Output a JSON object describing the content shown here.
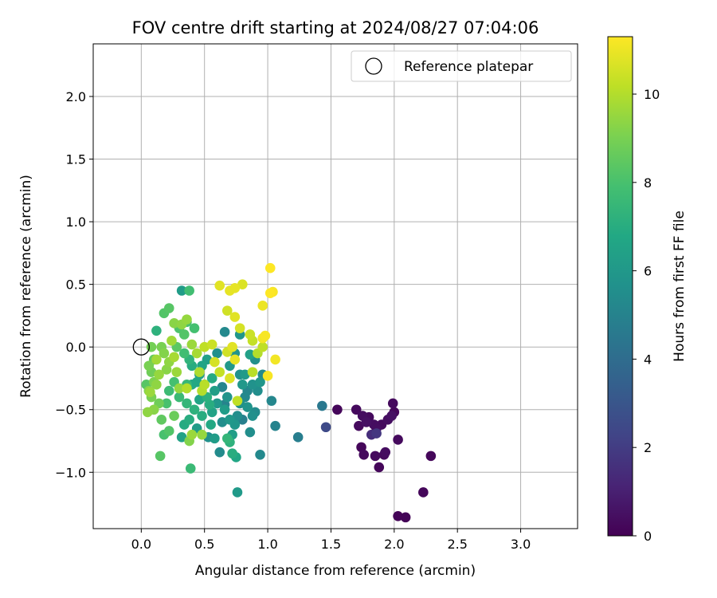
{
  "chart_data": {
    "type": "scatter",
    "title": "FOV centre drift starting at 2024/08/27 07:04:06",
    "xlabel": "Angular distance from reference (arcmin)",
    "ylabel": "Rotation from reference (arcmin)",
    "xlim": [
      -0.38,
      3.45
    ],
    "ylim": [
      -1.45,
      2.42
    ],
    "xticks": [
      "0.0",
      "0.5",
      "1.0",
      "1.5",
      "2.0",
      "2.5",
      "3.0"
    ],
    "xtick_values": [
      0,
      0.5,
      1.0,
      1.5,
      2.0,
      2.5,
      3.0
    ],
    "yticks": [
      "−1.0",
      "−0.5",
      "0.0",
      "0.5",
      "1.0",
      "1.5",
      "2.0"
    ],
    "ytick_values": [
      -1.0,
      -0.5,
      0.0,
      0.5,
      1.0,
      1.5,
      2.0
    ],
    "grid": true,
    "legend": {
      "placement": "top-right",
      "entries": [
        "Reference platepar"
      ]
    },
    "reference_point": {
      "x": 0.0,
      "y": 0.0
    },
    "colorbar": {
      "label": "Hours from first FF file",
      "min": 0,
      "max": 11.3,
      "ticks": [
        "0",
        "2",
        "4",
        "6",
        "8",
        "10"
      ],
      "tick_values": [
        0,
        2,
        4,
        6,
        8,
        10
      ],
      "colormap": "viridis"
    },
    "series": [
      {
        "points": [
          [
            1.55,
            -0.5,
            0.2
          ],
          [
            1.7,
            -0.5,
            0.3
          ],
          [
            1.72,
            -0.63,
            0.3
          ],
          [
            1.75,
            -0.55,
            0.4
          ],
          [
            1.8,
            -0.56,
            0.3
          ],
          [
            1.78,
            -0.6,
            0.5
          ],
          [
            1.84,
            -0.62,
            0.4
          ],
          [
            1.86,
            -0.65,
            0.4
          ],
          [
            1.9,
            -0.62,
            0.3
          ],
          [
            1.95,
            -0.58,
            0.4
          ],
          [
            1.99,
            -0.45,
            0.3
          ],
          [
            2.0,
            -0.52,
            0.2
          ],
          [
            1.98,
            -0.55,
            0.5
          ],
          [
            1.74,
            -0.8,
            0.2
          ],
          [
            1.76,
            -0.86,
            0.3
          ],
          [
            1.85,
            -0.87,
            0.3
          ],
          [
            1.88,
            -0.96,
            0.2
          ],
          [
            1.92,
            -0.86,
            0.3
          ],
          [
            1.93,
            -0.84,
            0.4
          ],
          [
            2.03,
            -0.74,
            0.3
          ],
          [
            2.03,
            -1.35,
            0.1
          ],
          [
            2.09,
            -1.36,
            0.1
          ],
          [
            2.23,
            -1.16,
            0.2
          ],
          [
            2.29,
            -0.87,
            0.2
          ],
          [
            1.82,
            -0.7,
            1.5
          ],
          [
            1.86,
            -0.69,
            1.8
          ],
          [
            1.46,
            -0.64,
            2.5
          ],
          [
            1.43,
            -0.47,
            4.5
          ],
          [
            1.24,
            -0.72,
            4.8
          ],
          [
            1.06,
            -0.63,
            5.0
          ],
          [
            1.03,
            -0.43,
            5.2
          ],
          [
            0.94,
            -0.86,
            5.3
          ],
          [
            0.9,
            -0.52,
            5.4
          ],
          [
            0.88,
            -0.55,
            5.6
          ],
          [
            0.86,
            -0.68,
            5.5
          ],
          [
            0.84,
            -0.48,
            5.8
          ],
          [
            0.8,
            -0.3,
            6.0
          ],
          [
            0.78,
            -0.45,
            5.6
          ],
          [
            0.76,
            -0.55,
            5.5
          ],
          [
            0.74,
            -0.62,
            5.9
          ],
          [
            0.72,
            -0.7,
            6.3
          ],
          [
            0.7,
            -0.58,
            6.0
          ],
          [
            0.68,
            -0.4,
            5.8
          ],
          [
            0.66,
            -0.5,
            6.2
          ],
          [
            0.64,
            -0.6,
            5.5
          ],
          [
            0.62,
            -0.84,
            5.4
          ],
          [
            0.6,
            -0.45,
            6.0
          ],
          [
            0.58,
            -0.35,
            6.3
          ],
          [
            0.56,
            -0.52,
            6.5
          ],
          [
            0.55,
            -0.62,
            6.8
          ],
          [
            0.53,
            -0.72,
            5.6
          ],
          [
            0.5,
            -0.3,
            6.5
          ],
          [
            0.48,
            -0.55,
            7.0
          ],
          [
            0.46,
            -0.42,
            6.6
          ],
          [
            0.44,
            -0.65,
            6.2
          ],
          [
            0.42,
            -0.5,
            7.2
          ],
          [
            0.4,
            -0.3,
            6.8
          ],
          [
            0.38,
            -0.58,
            7.0
          ],
          [
            0.36,
            -0.45,
            7.4
          ],
          [
            0.34,
            -0.62,
            6.9
          ],
          [
            0.32,
            -0.72,
            6.5
          ],
          [
            0.3,
            -0.4,
            7.6
          ],
          [
            0.6,
            -0.05,
            5.6
          ],
          [
            0.66,
            0.12,
            5.3
          ],
          [
            0.7,
            -0.15,
            6.0
          ],
          [
            0.74,
            -0.05,
            5.8
          ],
          [
            0.78,
            0.1,
            5.9
          ],
          [
            0.82,
            -0.22,
            6.1
          ],
          [
            0.86,
            -0.06,
            6.4
          ],
          [
            0.88,
            -0.3,
            5.7
          ],
          [
            0.92,
            -0.35,
            5.5
          ],
          [
            0.94,
            -0.28,
            5.9
          ],
          [
            0.96,
            -0.22,
            5.4
          ],
          [
            0.82,
            -0.4,
            5.3
          ],
          [
            0.76,
            -1.16,
            6.1
          ],
          [
            0.75,
            -0.88,
            6.7
          ],
          [
            0.72,
            -0.85,
            7.0
          ],
          [
            0.7,
            -0.76,
            7.2
          ],
          [
            0.68,
            -0.73,
            7.4
          ],
          [
            0.58,
            -0.73,
            6.2
          ],
          [
            0.54,
            -0.46,
            7.0
          ],
          [
            0.52,
            -0.4,
            7.1
          ],
          [
            0.48,
            -0.15,
            6.6
          ],
          [
            0.46,
            -0.22,
            6.3
          ],
          [
            0.44,
            -0.28,
            6.7
          ],
          [
            0.4,
            -0.15,
            7.0
          ],
          [
            0.38,
            -0.1,
            7.3
          ],
          [
            0.36,
            -0.3,
            7.5
          ],
          [
            0.34,
            -0.05,
            7.8
          ],
          [
            0.32,
            0.45,
            6.2
          ],
          [
            0.38,
            0.45,
            7.8
          ],
          [
            0.42,
            0.15,
            7.9
          ],
          [
            0.36,
            0.2,
            8.0
          ],
          [
            0.34,
            0.1,
            8.2
          ],
          [
            0.3,
            0.15,
            8.1
          ],
          [
            0.28,
            0.0,
            8.4
          ],
          [
            0.22,
            0.31,
            8.3
          ],
          [
            0.18,
            0.27,
            8.2
          ],
          [
            0.12,
            0.13,
            7.2
          ],
          [
            0.1,
            -0.1,
            8.6
          ],
          [
            0.08,
            -0.2,
            8.8
          ],
          [
            0.06,
            -0.15,
            9.0
          ],
          [
            0.04,
            -0.3,
            8.3
          ],
          [
            0.06,
            -0.35,
            9.2
          ],
          [
            0.08,
            -0.4,
            9.0
          ],
          [
            0.12,
            -0.3,
            9.4
          ],
          [
            0.14,
            -0.45,
            8.8
          ],
          [
            0.1,
            -0.5,
            9.3
          ],
          [
            0.16,
            -0.58,
            8.5
          ],
          [
            0.18,
            -0.7,
            8.0
          ],
          [
            0.22,
            -0.67,
            8.2
          ],
          [
            0.26,
            -0.55,
            8.7
          ],
          [
            0.15,
            -0.87,
            8.3
          ],
          [
            0.3,
            -0.33,
            9.5
          ],
          [
            0.28,
            -0.2,
            9.6
          ],
          [
            0.26,
            -0.08,
            9.8
          ],
          [
            0.24,
            0.05,
            9.7
          ],
          [
            0.22,
            -0.12,
            9.4
          ],
          [
            0.2,
            -0.18,
            9.3
          ],
          [
            0.18,
            -0.05,
            9.2
          ],
          [
            0.16,
            0.0,
            9.0
          ],
          [
            0.14,
            -0.22,
            9.5
          ],
          [
            0.12,
            -0.1,
            9.7
          ],
          [
            0.1,
            -0.28,
            9.1
          ],
          [
            0.08,
            0.0,
            8.9
          ],
          [
            0.07,
            -0.36,
            9.6
          ],
          [
            0.05,
            -0.52,
            9.4
          ],
          [
            0.26,
            0.19,
            9.3
          ],
          [
            0.32,
            0.18,
            9.4
          ],
          [
            0.36,
            0.22,
            9.5
          ],
          [
            0.4,
            0.02,
            9.6
          ],
          [
            0.44,
            -0.05,
            9.8
          ],
          [
            0.46,
            -0.2,
            9.9
          ],
          [
            0.48,
            -0.35,
            10.0
          ],
          [
            0.5,
            -0.3,
            10.1
          ],
          [
            0.36,
            -0.33,
            10.0
          ],
          [
            0.38,
            -0.75,
            9.2
          ],
          [
            0.4,
            -0.7,
            9.6
          ],
          [
            0.48,
            -0.7,
            9.5
          ],
          [
            0.5,
            0.0,
            10.2
          ],
          [
            0.56,
            0.02,
            10.4
          ],
          [
            0.58,
            -0.12,
            10.6
          ],
          [
            0.62,
            -0.2,
            10.3
          ],
          [
            0.68,
            -0.04,
            10.5
          ],
          [
            0.7,
            -0.25,
            10.7
          ],
          [
            0.72,
            0.0,
            10.8
          ],
          [
            0.74,
            -0.1,
            10.9
          ],
          [
            0.76,
            -0.43,
            10.2
          ],
          [
            0.62,
            0.49,
            10.8
          ],
          [
            0.68,
            0.29,
            10.5
          ],
          [
            0.7,
            0.45,
            10.9
          ],
          [
            0.74,
            0.47,
            10.9
          ],
          [
            0.8,
            0.5,
            10.7
          ],
          [
            0.74,
            0.24,
            10.8
          ],
          [
            0.78,
            0.15,
            10.6
          ],
          [
            0.86,
            0.1,
            10.4
          ],
          [
            0.88,
            0.05,
            10.3
          ],
          [
            0.96,
            0.33,
            11.0
          ],
          [
            0.96,
            0.07,
            11.1
          ],
          [
            0.98,
            0.09,
            11.2
          ],
          [
            1.0,
            -0.23,
            11.2
          ],
          [
            1.02,
            0.43,
            11.3
          ],
          [
            1.02,
            0.63,
            11.3
          ],
          [
            1.04,
            0.44,
            11.2
          ],
          [
            1.06,
            -0.1,
            11.1
          ],
          [
            0.92,
            -0.05,
            10.0
          ],
          [
            0.88,
            -0.2,
            10.1
          ],
          [
            0.96,
            0.0,
            10.2
          ],
          [
            0.39,
            -0.97,
            7.6
          ],
          [
            0.66,
            -0.46,
            5.0
          ],
          [
            0.64,
            -0.32,
            5.1
          ],
          [
            0.8,
            -0.58,
            4.9
          ],
          [
            0.84,
            -0.35,
            5.2
          ],
          [
            0.78,
            -0.22,
            5.7
          ],
          [
            0.56,
            -0.25,
            6.9
          ],
          [
            0.52,
            -0.1,
            6.4
          ],
          [
            0.9,
            -0.1,
            5.6
          ],
          [
            0.22,
            -0.35,
            7.7
          ],
          [
            0.26,
            -0.28,
            7.9
          ],
          [
            0.2,
            -0.45,
            8.0
          ]
        ]
      }
    ]
  }
}
